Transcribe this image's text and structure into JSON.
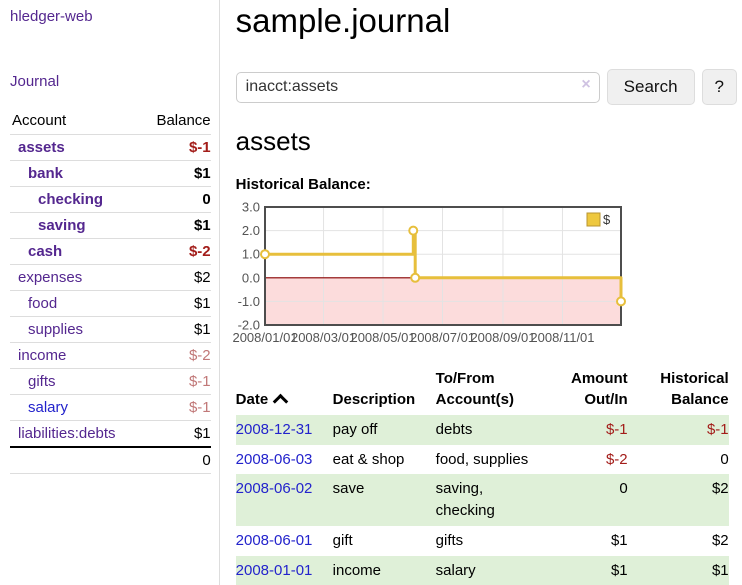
{
  "colors": {
    "link_purple": "#54278f",
    "link_blue": "#2323cc",
    "negative_strong": "#a31d1a",
    "negative_soft": "#c17878",
    "row_green": "#dff0d8",
    "chart_line": "#e7bf3c",
    "chart_negative_fill": "#fcdcdc",
    "chart_zero_line": "#8b0000",
    "grid_line": "#e3e3e3",
    "plot_border": "#4d4d4d"
  },
  "app_title": "hledger-web",
  "sidebar": {
    "journal_link": "Journal",
    "accounts": {
      "header": {
        "account": "Account",
        "balance": "Balance"
      },
      "rows": [
        {
          "name": "assets",
          "indent": 0,
          "bold": true,
          "name_style": "purple",
          "balance": "$-1",
          "balance_style": "neg-strong"
        },
        {
          "name": "bank",
          "indent": 1,
          "bold": true,
          "name_style": "purple",
          "balance": "$1",
          "balance_style": "plain"
        },
        {
          "name": "checking",
          "indent": 2,
          "bold": true,
          "name_style": "purple",
          "balance": "0",
          "balance_style": "plain"
        },
        {
          "name": "saving",
          "indent": 2,
          "bold": true,
          "name_style": "purple",
          "balance": "$1",
          "balance_style": "plain"
        },
        {
          "name": "cash",
          "indent": 1,
          "bold": true,
          "name_style": "purple",
          "balance": "$-2",
          "balance_style": "neg-strong"
        },
        {
          "name": "expenses",
          "indent": 0,
          "bold": false,
          "name_style": "purple",
          "balance": "$2",
          "balance_style": "plain"
        },
        {
          "name": "food",
          "indent": 1,
          "bold": false,
          "name_style": "purple",
          "balance": "$1",
          "balance_style": "plain"
        },
        {
          "name": "supplies",
          "indent": 1,
          "bold": false,
          "name_style": "purple",
          "balance": "$1",
          "balance_style": "plain"
        },
        {
          "name": "income",
          "indent": 0,
          "bold": false,
          "name_style": "purple",
          "balance": "$-2",
          "balance_style": "neg-soft"
        },
        {
          "name": "gifts",
          "indent": 1,
          "bold": false,
          "name_style": "purple",
          "balance": "$-1",
          "balance_style": "neg-soft"
        },
        {
          "name": "salary",
          "indent": 1,
          "bold": false,
          "name_style": "blue",
          "balance": "$-1",
          "balance_style": "neg-soft"
        },
        {
          "name": "liabilities:debts",
          "indent": 0,
          "bold": false,
          "name_style": "purple",
          "balance": "$1",
          "balance_style": "plain"
        }
      ],
      "total": "0"
    }
  },
  "main": {
    "title": "sample.journal",
    "search": {
      "value": "inacct:assets",
      "clear_icon": "×",
      "search_button": "Search",
      "help_button": "?"
    },
    "account_heading": "assets",
    "chart_label": "Historical Balance:"
  },
  "chart_data": {
    "type": "line",
    "step": true,
    "title": "Historical Balance:",
    "series": [
      {
        "name": "$",
        "color": "#e7bf3c",
        "points": [
          [
            "2008-01-01",
            1.0
          ],
          [
            "2008-06-01",
            2.0
          ],
          [
            "2008-06-03",
            0.0
          ],
          [
            "2008-12-31",
            -1.0
          ]
        ]
      }
    ],
    "x_range": [
      "2008-01-01",
      "2008-12-31"
    ],
    "ylim": [
      -2.0,
      3.0
    ],
    "yticks": [
      "3.0",
      "2.0",
      "1.0",
      "0.0",
      "-1.0",
      "-2.0"
    ],
    "xticks": [
      "2008/01/01",
      "2008/03/01",
      "2008/05/01",
      "2008/07/01",
      "2008/09/01",
      "2008/11/01"
    ],
    "legend": {
      "label": "$",
      "position": "top-right"
    },
    "grid": true,
    "negative_region": true
  },
  "register": {
    "headers": {
      "date": "Date",
      "description": "Description",
      "accounts": "To/From Account(s)",
      "amount": "Amount Out/In",
      "balance": "Historical Balance"
    },
    "sort": {
      "column": "date",
      "direction": "asc"
    },
    "rows": [
      {
        "date": "2008-12-31",
        "description": "pay off",
        "accounts": "debts",
        "amount": "$-1",
        "amount_neg": true,
        "balance": "$-1",
        "balance_neg": true,
        "shaded": true
      },
      {
        "date": "2008-06-03",
        "description": "eat & shop",
        "accounts": "food, supplies",
        "amount": "$-2",
        "amount_neg": true,
        "balance": "0",
        "balance_neg": false,
        "shaded": false
      },
      {
        "date": "2008-06-02",
        "description": "save",
        "accounts": "saving,\nchecking",
        "amount": "0",
        "amount_neg": false,
        "balance": "$2",
        "balance_neg": false,
        "shaded": true
      },
      {
        "date": "2008-06-01",
        "description": "gift",
        "accounts": "gifts",
        "amount": "$1",
        "amount_neg": false,
        "balance": "$2",
        "balance_neg": false,
        "shaded": false
      },
      {
        "date": "2008-01-01",
        "description": "income",
        "accounts": "salary",
        "amount": "$1",
        "amount_neg": false,
        "balance": "$1",
        "balance_neg": false,
        "shaded": true
      }
    ]
  }
}
